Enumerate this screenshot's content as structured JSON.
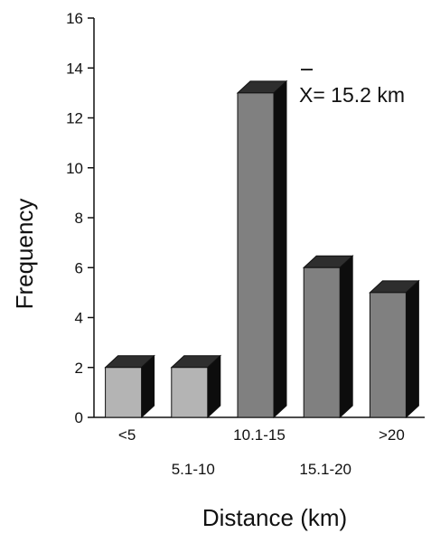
{
  "chart_data": {
    "type": "bar",
    "categories": [
      "<5",
      "5.1-10",
      "10.1-15",
      "15.1-20",
      ">20"
    ],
    "values": [
      2,
      2,
      13,
      6,
      5
    ],
    "xlabel": "Distance (km)",
    "ylabel": "Frequency",
    "ylim": [
      0,
      16
    ],
    "yticks": [
      0,
      2,
      4,
      6,
      8,
      10,
      12,
      14,
      16
    ],
    "annotation": "X= 15.2 km",
    "bar_style": "3d",
    "bar_colors": [
      "#b4b4b4",
      "#b4b4b4",
      "#808080",
      "#808080",
      "#808080"
    ],
    "grid": false,
    "legend": "none"
  }
}
